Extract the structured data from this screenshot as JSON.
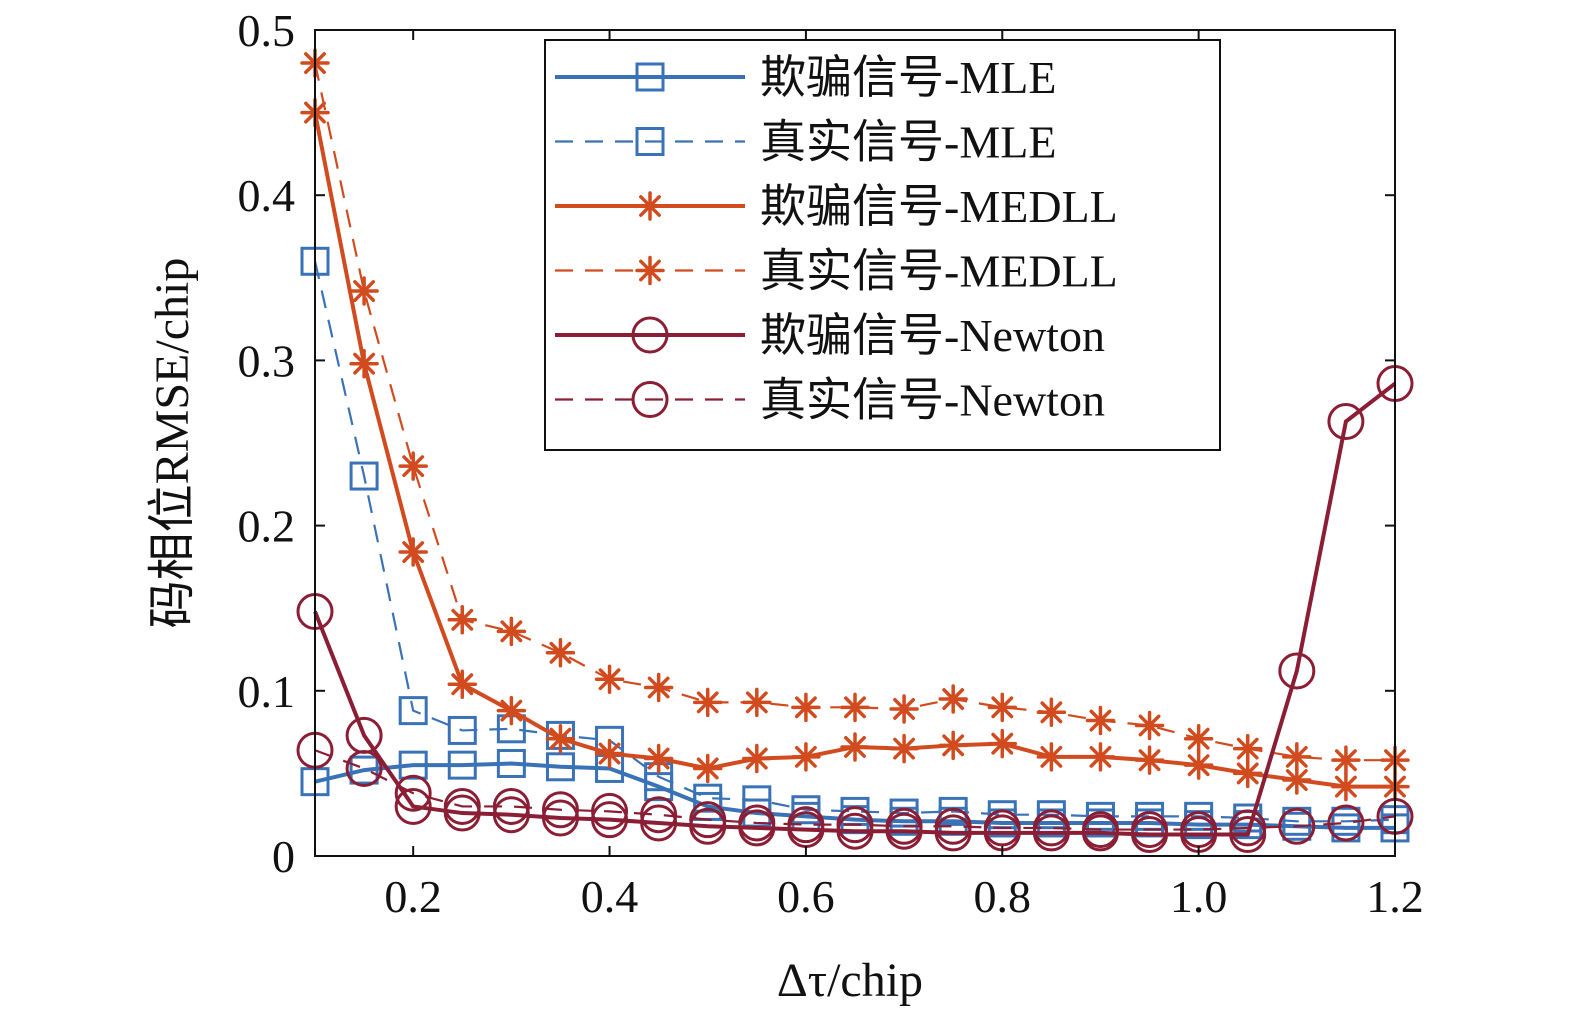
{
  "chart_data": {
    "type": "line",
    "title": "",
    "xlabel": "Δτ/chip",
    "ylabel": "码相位RMSE/chip",
    "xlim": [
      0.1,
      1.2
    ],
    "ylim": [
      0,
      0.5
    ],
    "xticks": [
      0.2,
      0.4,
      0.6,
      0.8,
      1.0,
      1.2
    ],
    "xtick_labels": [
      "0.2",
      "0.4",
      "0.6",
      "0.8",
      "1.0",
      "1.2"
    ],
    "yticks": [
      0,
      0.1,
      0.2,
      0.3,
      0.4,
      0.5
    ],
    "ytick_labels": [
      "0",
      "0.1",
      "0.2",
      "0.3",
      "0.4",
      "0.5"
    ],
    "grid": false,
    "legend_position": "top-right",
    "x": [
      0.1,
      0.15,
      0.2,
      0.25,
      0.3,
      0.35,
      0.4,
      0.45,
      0.5,
      0.55,
      0.6,
      0.65,
      0.7,
      0.75,
      0.8,
      0.85,
      0.9,
      0.95,
      1.0,
      1.05,
      1.1,
      1.15,
      1.2
    ],
    "series": [
      {
        "name": "欺骗信号-MLE",
        "color": "#3a72b8",
        "line": "solid",
        "marker": "square",
        "values": [
          0.045,
          0.052,
          0.055,
          0.055,
          0.056,
          0.054,
          0.053,
          0.042,
          0.03,
          0.026,
          0.024,
          0.022,
          0.021,
          0.021,
          0.02,
          0.02,
          0.02,
          0.02,
          0.019,
          0.019,
          0.018,
          0.017,
          0.017
        ]
      },
      {
        "name": "真实信号-MLE",
        "color": "#3a72b8",
        "line": "dashed",
        "marker": "square",
        "values": [
          0.36,
          0.23,
          0.088,
          0.076,
          0.077,
          0.073,
          0.07,
          0.048,
          0.035,
          0.034,
          0.028,
          0.027,
          0.026,
          0.027,
          0.025,
          0.025,
          0.024,
          0.024,
          0.024,
          0.023,
          0.021,
          0.021,
          0.022
        ]
      },
      {
        "name": "欺骗信号-MEDLL",
        "color": "#d24b1f",
        "line": "solid",
        "marker": "star",
        "values": [
          0.45,
          0.298,
          0.184,
          0.104,
          0.088,
          0.071,
          0.062,
          0.059,
          0.053,
          0.059,
          0.06,
          0.066,
          0.065,
          0.067,
          0.068,
          0.06,
          0.06,
          0.058,
          0.055,
          0.05,
          0.046,
          0.042,
          0.042
        ]
      },
      {
        "name": "真实信号-MEDLL",
        "color": "#d24b1f",
        "line": "dashed",
        "marker": "star",
        "values": [
          0.48,
          0.342,
          0.236,
          0.143,
          0.136,
          0.123,
          0.107,
          0.102,
          0.093,
          0.093,
          0.09,
          0.09,
          0.089,
          0.095,
          0.09,
          0.087,
          0.082,
          0.079,
          0.071,
          0.065,
          0.06,
          0.058,
          0.058
        ]
      },
      {
        "name": "欺骗信号-Newton",
        "color": "#8b1e34",
        "line": "solid",
        "marker": "circle",
        "values": [
          0.148,
          0.073,
          0.03,
          0.026,
          0.025,
          0.023,
          0.022,
          0.02,
          0.018,
          0.017,
          0.016,
          0.015,
          0.015,
          0.014,
          0.014,
          0.014,
          0.014,
          0.013,
          0.013,
          0.013,
          0.112,
          0.263,
          0.286
        ]
      },
      {
        "name": "真实信号-Newton",
        "color": "#8b1e34",
        "line": "dashed",
        "marker": "circle",
        "values": [
          0.064,
          0.053,
          0.038,
          0.03,
          0.03,
          0.028,
          0.027,
          0.025,
          0.022,
          0.02,
          0.019,
          0.019,
          0.018,
          0.018,
          0.017,
          0.017,
          0.016,
          0.016,
          0.016,
          0.017,
          0.018,
          0.02,
          0.024
        ]
      }
    ]
  }
}
